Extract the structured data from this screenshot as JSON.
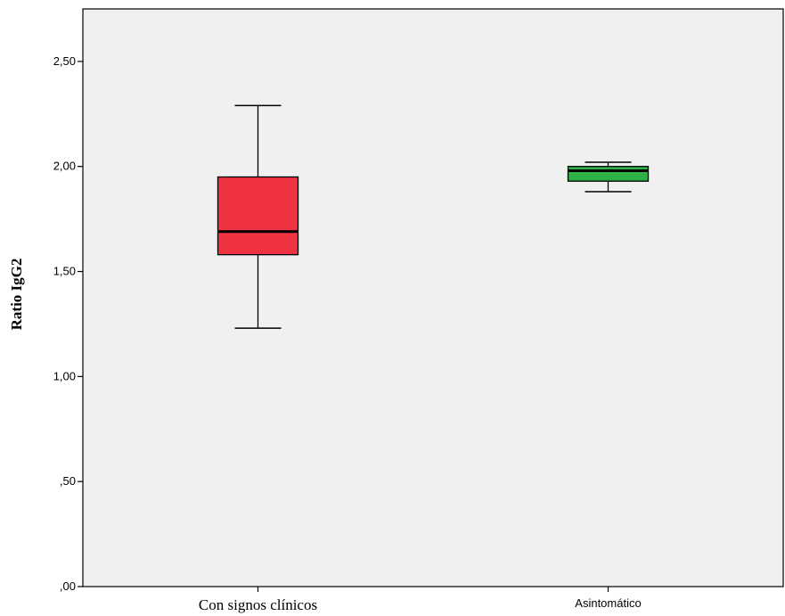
{
  "chart_data": {
    "type": "boxplot",
    "ylabel": "Ratio IgG2",
    "ylim": [
      0,
      2.75
    ],
    "yticks": [
      0,
      0.5,
      1.0,
      1.5,
      2.0,
      2.5
    ],
    "ytick_labels": [
      ",00",
      ",50",
      "1,00",
      "1,50",
      "2,00",
      "2,50"
    ],
    "grid": false,
    "categories": [
      "Con signos clínicos",
      "Asintomático"
    ],
    "boxes": [
      {
        "category": "Con signos clínicos",
        "min": 1.23,
        "q1": 1.58,
        "median": 1.69,
        "q3": 1.95,
        "max": 2.29,
        "color": "#EF3340"
      },
      {
        "category": "Asintomático",
        "min": 1.88,
        "q1": 1.93,
        "median": 1.98,
        "q3": 2.0,
        "max": 2.02,
        "color": "#2DB045"
      }
    ],
    "plot_background": "#F0F0F0"
  }
}
